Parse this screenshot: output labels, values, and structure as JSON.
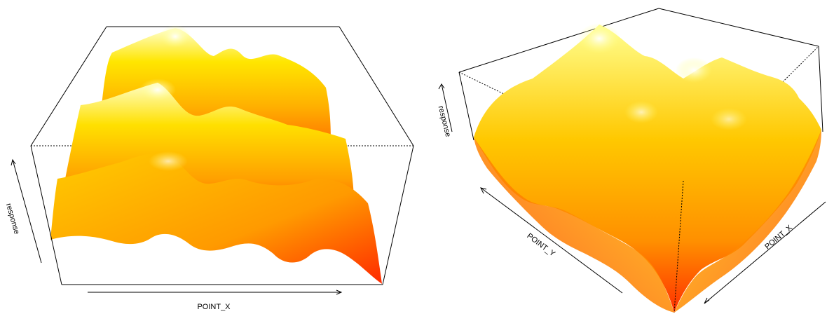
{
  "chart_data": [
    {
      "type": "surface-3d",
      "xlabel": "POINT_X",
      "zlabel": "response",
      "colors": {
        "high": "#ffffc8",
        "mid": "#ffd400",
        "low": "#ff2a00"
      }
    },
    {
      "type": "surface-3d",
      "xlabel": "POINT_X",
      "ylabel": "POINT_Y",
      "zlabel": "response",
      "colors": {
        "high": "#ffffc8",
        "mid": "#ffd400",
        "low": "#ff2a00"
      }
    }
  ]
}
